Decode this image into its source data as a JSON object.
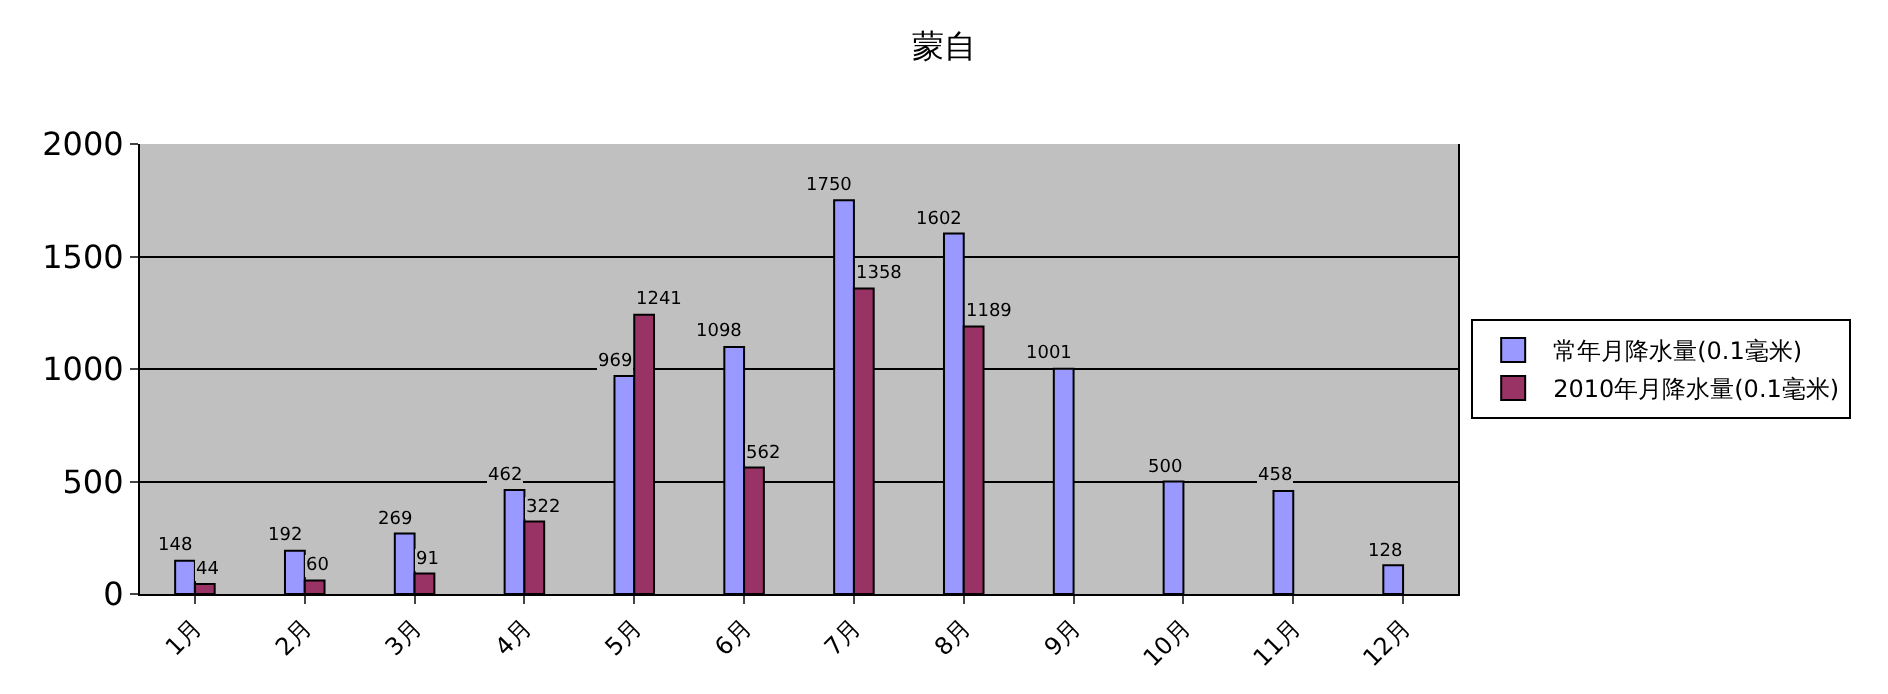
{
  "chart_data": {
    "type": "bar",
    "title": "蒙自",
    "categories": [
      "1月",
      "2月",
      "3月",
      "4月",
      "5月",
      "6月",
      "7月",
      "8月",
      "9月",
      "10月",
      "11月",
      "12月"
    ],
    "series": [
      {
        "name": "常年月降水量(0.1毫米)",
        "color": "#9999ff",
        "values": [
          148,
          192,
          269,
          462,
          969,
          1098,
          1750,
          1602,
          1001,
          500,
          458,
          128
        ]
      },
      {
        "name": "2010年月降水量(0.1毫米)",
        "color": "#993366",
        "values": [
          44,
          60,
          91,
          322,
          1241,
          562,
          1358,
          1189,
          null,
          null,
          null,
          null
        ]
      }
    ],
    "ylim": [
      0,
      2000
    ],
    "yticks": [
      0,
      500,
      1000,
      1500,
      2000
    ],
    "grid": "y",
    "legend": "right",
    "data_labels": true
  }
}
